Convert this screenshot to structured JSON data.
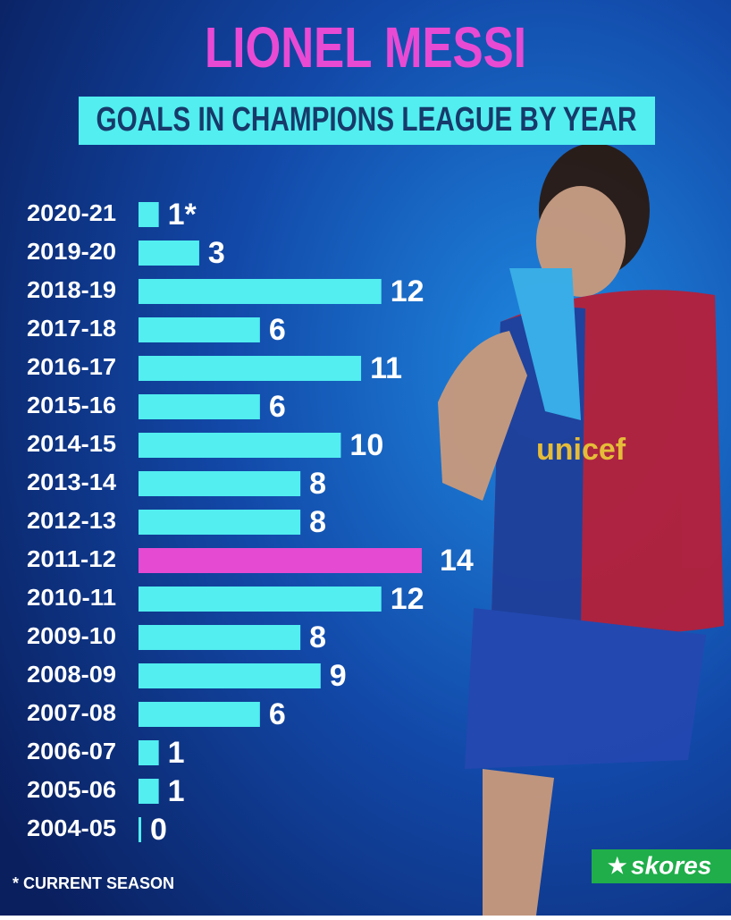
{
  "chart_data": {
    "type": "hbar",
    "title": "LIONEL MESSI",
    "subtitle": "GOALS IN CHAMPIONS LEAGUE BY YEAR",
    "categories": [
      "2020-21",
      "2019-20",
      "2018-19",
      "2017-18",
      "2016-17",
      "2015-16",
      "2014-15",
      "2013-14",
      "2012-13",
      "2011-12",
      "2010-11",
      "2009-10",
      "2008-09",
      "2007-08",
      "2006-07",
      "2005-06",
      "2004-05"
    ],
    "values": [
      1,
      3,
      12,
      6,
      11,
      6,
      10,
      8,
      8,
      14,
      12,
      8,
      9,
      6,
      1,
      1,
      0
    ],
    "value_labels": [
      "1*",
      "3",
      "12",
      "6",
      "11",
      "6",
      "10",
      "8",
      "8",
      "14",
      "12",
      "8",
      "9",
      "6",
      "1",
      "1",
      "0"
    ],
    "colors": [
      "#52eef0",
      "#52eef0",
      "#52eef0",
      "#52eef0",
      "#52eef0",
      "#52eef0",
      "#52eef0",
      "#52eef0",
      "#52eef0",
      "#e44ad2",
      "#52eef0",
      "#52eef0",
      "#52eef0",
      "#52eef0",
      "#52eef0",
      "#52eef0",
      "#52eef0"
    ],
    "footnote": "* CURRENT SEASON",
    "brand": "skores"
  }
}
